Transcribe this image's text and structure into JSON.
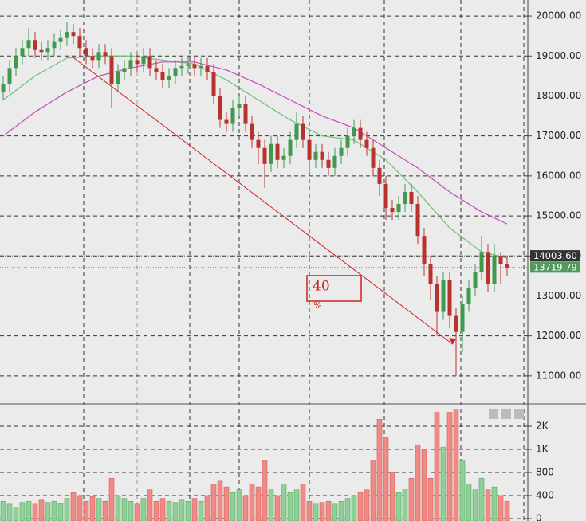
{
  "chart_data": {
    "type": "candlestick",
    "open": [
      18100,
      18300,
      18700,
      19000,
      19200,
      19400,
      19150,
      19100,
      19200,
      19350,
      19450,
      19600,
      19500,
      19200,
      19000,
      18900,
      19100,
      19000,
      18300,
      18600,
      18700,
      18900,
      18800,
      19000,
      18700,
      18600,
      18400,
      18500,
      18700,
      18750,
      18800,
      18700,
      18750,
      18600,
      18000,
      17400,
      17300,
      17700,
      17800,
      17300,
      16900,
      16700,
      16300,
      16800,
      16400,
      16500,
      16900,
      17300,
      16900,
      16400,
      16600,
      16400,
      16200,
      16500,
      16700,
      17000,
      17200,
      16900,
      16700,
      16200,
      15800,
      15200,
      15100,
      15300,
      15600,
      15300,
      14500,
      13800,
      13300,
      12600,
      13400,
      12500,
      12100,
      12800,
      13200,
      13600,
      14100,
      13300,
      14000,
      13800
    ],
    "high": [
      18500,
      18900,
      19200,
      19400,
      19700,
      19600,
      19350,
      19400,
      19550,
      19650,
      19850,
      19800,
      19700,
      19400,
      19200,
      19300,
      19300,
      19200,
      18800,
      18900,
      19100,
      19100,
      19200,
      19200,
      18900,
      18800,
      18700,
      18900,
      18950,
      19000,
      19000,
      18950,
      18950,
      18800,
      18200,
      17600,
      17900,
      18000,
      18000,
      17500,
      17100,
      16900,
      17000,
      17000,
      16700,
      17100,
      17600,
      17500,
      17100,
      16800,
      16800,
      16600,
      16700,
      16900,
      17200,
      17400,
      17400,
      17100,
      16900,
      16400,
      16000,
      15400,
      15500,
      15800,
      15800,
      15500,
      14700,
      14000,
      13500,
      13600,
      13600,
      12700,
      13000,
      13400,
      13800,
      14500,
      14300,
      14300,
      14100,
      14000
    ],
    "low": [
      17900,
      18100,
      18500,
      18800,
      19000,
      18950,
      18900,
      18900,
      19000,
      19150,
      19250,
      19300,
      19000,
      18800,
      18700,
      18700,
      18800,
      17700,
      18100,
      18400,
      18500,
      18600,
      18600,
      18500,
      18400,
      18200,
      18200,
      18300,
      18500,
      18550,
      18500,
      18500,
      18400,
      17800,
      17200,
      17100,
      17100,
      17500,
      17100,
      16700,
      16300,
      15700,
      16100,
      16200,
      16200,
      16300,
      16700,
      16700,
      16100,
      16200,
      16200,
      16000,
      16000,
      16300,
      16500,
      16800,
      16700,
      16500,
      16000,
      15500,
      14900,
      14900,
      14900,
      15100,
      15100,
      14300,
      13500,
      12900,
      12000,
      12400,
      12200,
      11000,
      11600,
      12600,
      13000,
      13400,
      13100,
      13100,
      13300,
      13500
    ],
    "close": [
      18300,
      18700,
      19000,
      19200,
      19400,
      19150,
      19100,
      19200,
      19350,
      19450,
      19600,
      19500,
      19200,
      19000,
      18900,
      19100,
      19000,
      18300,
      18600,
      18700,
      18900,
      18800,
      19000,
      18700,
      18600,
      18400,
      18500,
      18700,
      18750,
      18800,
      18700,
      18750,
      18600,
      18000,
      17400,
      17300,
      17700,
      17800,
      17300,
      16900,
      16700,
      16300,
      16800,
      16400,
      16500,
      16900,
      17300,
      16900,
      16400,
      16600,
      16400,
      16200,
      16500,
      16700,
      17000,
      17200,
      16900,
      16700,
      16200,
      15800,
      15200,
      15100,
      15300,
      15600,
      15300,
      14500,
      13800,
      13300,
      12600,
      13400,
      12500,
      12100,
      12800,
      13200,
      13600,
      14100,
      13300,
      14000,
      13800,
      13700
    ],
    "up_color": "#3f9a4e",
    "down_color": "#b8332e",
    "ylim": [
      10340,
      20400
    ],
    "yticks": [
      {
        "value": 11000,
        "label": "11000.00"
      },
      {
        "value": 12000,
        "label": "12000.00"
      },
      {
        "value": 13000,
        "label": "13000.00"
      },
      {
        "value": 14000,
        "label": "14000.00"
      },
      {
        "value": 15000,
        "label": "15000.00"
      },
      {
        "value": 16000,
        "label": "16000.00"
      },
      {
        "value": 17000,
        "label": "17000.00"
      },
      {
        "value": 18000,
        "label": "18000.00"
      },
      {
        "value": 19000,
        "label": "19000.00"
      },
      {
        "value": 20000,
        "label": "20000.00"
      }
    ],
    "grid": true,
    "moving_averages": [
      {
        "color": "#6cbf78",
        "x": [
          0,
          5,
          10,
          15,
          20,
          25,
          30,
          35,
          40,
          45,
          50,
          55,
          60,
          65,
          70,
          75,
          79
        ],
        "values": [
          17900,
          18500,
          18950,
          19000,
          19000,
          18900,
          18800,
          18400,
          17900,
          17400,
          17000,
          16900,
          16400,
          15600,
          14700,
          14100,
          13950
        ]
      },
      {
        "color": "#c44ab8",
        "x": [
          0,
          5,
          10,
          15,
          20,
          25,
          30,
          35,
          40,
          45,
          50,
          55,
          60,
          65,
          70,
          75,
          79
        ],
        "values": [
          17000,
          17600,
          18100,
          18500,
          18700,
          18850,
          18850,
          18650,
          18300,
          17900,
          17500,
          17200,
          16700,
          16200,
          15600,
          15100,
          14800
        ]
      }
    ],
    "price_markers": [
      {
        "value": 14003.6,
        "label": "14003.60",
        "color": "#333333"
      },
      {
        "value": 13719.79,
        "label": "13719.79",
        "color": "#4f9a5c"
      }
    ],
    "trendline": {
      "color": "#d22020",
      "x": [
        11,
        70.5
      ],
      "values": [
        18960,
        11790
      ]
    },
    "annotation": {
      "text": "40",
      "unit": "%"
    },
    "volume": {
      "values": [
        300,
        250,
        200,
        280,
        300,
        250,
        320,
        280,
        300,
        260,
        350,
        450,
        400,
        300,
        380,
        350,
        300,
        700,
        400,
        350,
        300,
        250,
        350,
        500,
        300,
        350,
        300,
        280,
        320,
        300,
        350,
        300,
        400,
        600,
        650,
        550,
        450,
        500,
        400,
        600,
        550,
        900,
        500,
        400,
        600,
        450,
        500,
        600,
        300,
        250,
        280,
        300,
        250,
        300,
        350,
        400,
        450,
        500,
        900,
        2300,
        1500,
        800,
        450,
        500,
        700,
        1200,
        1000,
        700,
        2600,
        1100,
        2600,
        2700,
        900,
        600,
        500,
        700,
        500,
        550,
        400,
        300
      ],
      "ylim": [
        0,
        2970
      ],
      "yticks": [
        0,
        400,
        800,
        {
          "value": 1000,
          "label": "1K"
        },
        {
          "value": 2000,
          "label": "2K"
        }
      ],
      "up_color": "#8fd096",
      "down_color": "#f08a84"
    }
  }
}
